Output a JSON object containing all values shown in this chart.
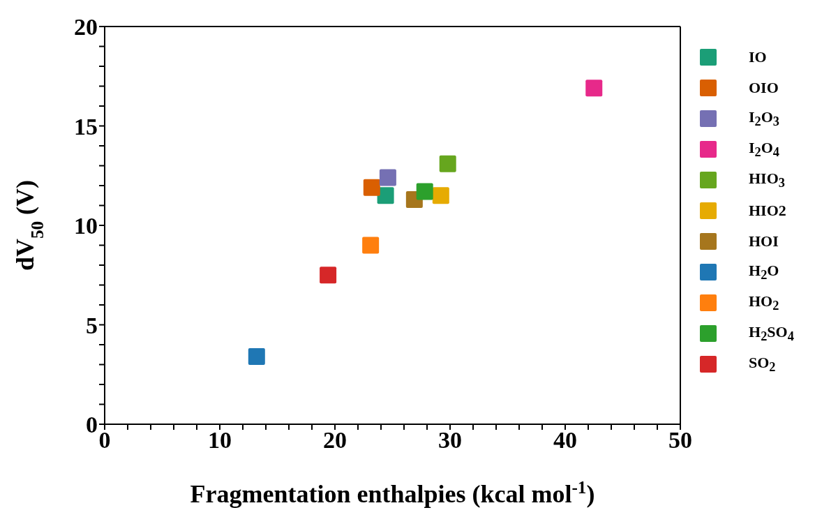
{
  "chart_data": {
    "type": "scatter",
    "xlabel": "Fragmentation enthalpies (kcal mol$^{-1}$)",
    "ylabel": "dV$_{50}$ (V)",
    "xlim": [
      0,
      50
    ],
    "ylim": [
      0,
      20
    ],
    "xticks": [
      0,
      {
        "value": 2,
        "label": null
      },
      {
        "value": 4,
        "label": null
      },
      {
        "value": 6,
        "label": null
      },
      {
        "value": 8,
        "label": null
      },
      10,
      {
        "value": 12,
        "label": null
      },
      {
        "value": 14,
        "label": null
      },
      {
        "value": 16,
        "label": null
      },
      {
        "value": 18,
        "label": null
      },
      20,
      {
        "value": 22,
        "label": null
      },
      {
        "value": 24,
        "label": null
      },
      {
        "value": 26,
        "label": null
      },
      {
        "value": 28,
        "label": null
      },
      30,
      {
        "value": 32,
        "label": null
      },
      {
        "value": 34,
        "label": null
      },
      {
        "value": 36,
        "label": null
      },
      {
        "value": 38,
        "label": null
      },
      40,
      {
        "value": 42,
        "label": null
      },
      {
        "value": 44,
        "label": null
      },
      {
        "value": 46,
        "label": null
      },
      {
        "value": 48,
        "label": null
      },
      50
    ],
    "yticks": [
      0,
      {
        "value": 1,
        "label": null
      },
      {
        "value": 2,
        "label": null
      },
      {
        "value": 3,
        "label": null
      },
      {
        "value": 4,
        "label": null
      },
      5,
      {
        "value": 6,
        "label": null
      },
      {
        "value": 7,
        "label": null
      },
      {
        "value": 8,
        "label": null
      },
      {
        "value": 9,
        "label": null
      },
      10,
      {
        "value": 11,
        "label": null
      },
      {
        "value": 12,
        "label": null
      },
      {
        "value": 13,
        "label": null
      },
      {
        "value": 14,
        "label": null
      },
      15,
      {
        "value": 16,
        "label": null
      },
      {
        "value": 17,
        "label": null
      },
      {
        "value": 18,
        "label": null
      },
      {
        "value": 19,
        "label": null
      },
      20
    ],
    "legend": "right",
    "marker": "square",
    "series": [
      {
        "name": "IO",
        "color": "#1b9e77",
        "x": [
          24.4
        ],
        "values": [
          11.5
        ]
      },
      {
        "name": "OIO",
        "color": "#d95f02",
        "x": [
          23.2
        ],
        "values": [
          11.9
        ]
      },
      {
        "name": "I$_{2}$O$_{3}$",
        "color": "#7570b3",
        "x": [
          24.6
        ],
        "values": [
          12.4
        ]
      },
      {
        "name": "I$_{2}$O$_{4}$",
        "color": "#e7298a",
        "x": [
          42.5
        ],
        "values": [
          16.9
        ]
      },
      {
        "name": "HIO$_{3}$",
        "color": "#66a61e",
        "x": [
          29.8
        ],
        "values": [
          13.1
        ]
      },
      {
        "name": "HIO2",
        "color": "#e6ab02",
        "x": [
          29.2
        ],
        "values": [
          11.5
        ]
      },
      {
        "name": "HOI",
        "color": "#a6761d",
        "x": [
          26.9
        ],
        "values": [
          11.3
        ]
      },
      {
        "name": "H$_{2}$O",
        "color": "#1f77b4",
        "x": [
          13.2
        ],
        "values": [
          3.4
        ]
      },
      {
        "name": "HO$_{2}$",
        "color": "#ff7f0e",
        "x": [
          23.1
        ],
        "values": [
          9.0
        ]
      },
      {
        "name": "H$_{2}$SO$_{4}$",
        "color": "#2ca02c",
        "x": [
          27.8
        ],
        "values": [
          11.7
        ]
      },
      {
        "name": "SO$_{2}$",
        "color": "#d62728",
        "x": [
          19.4
        ],
        "values": [
          7.5
        ]
      }
    ]
  }
}
